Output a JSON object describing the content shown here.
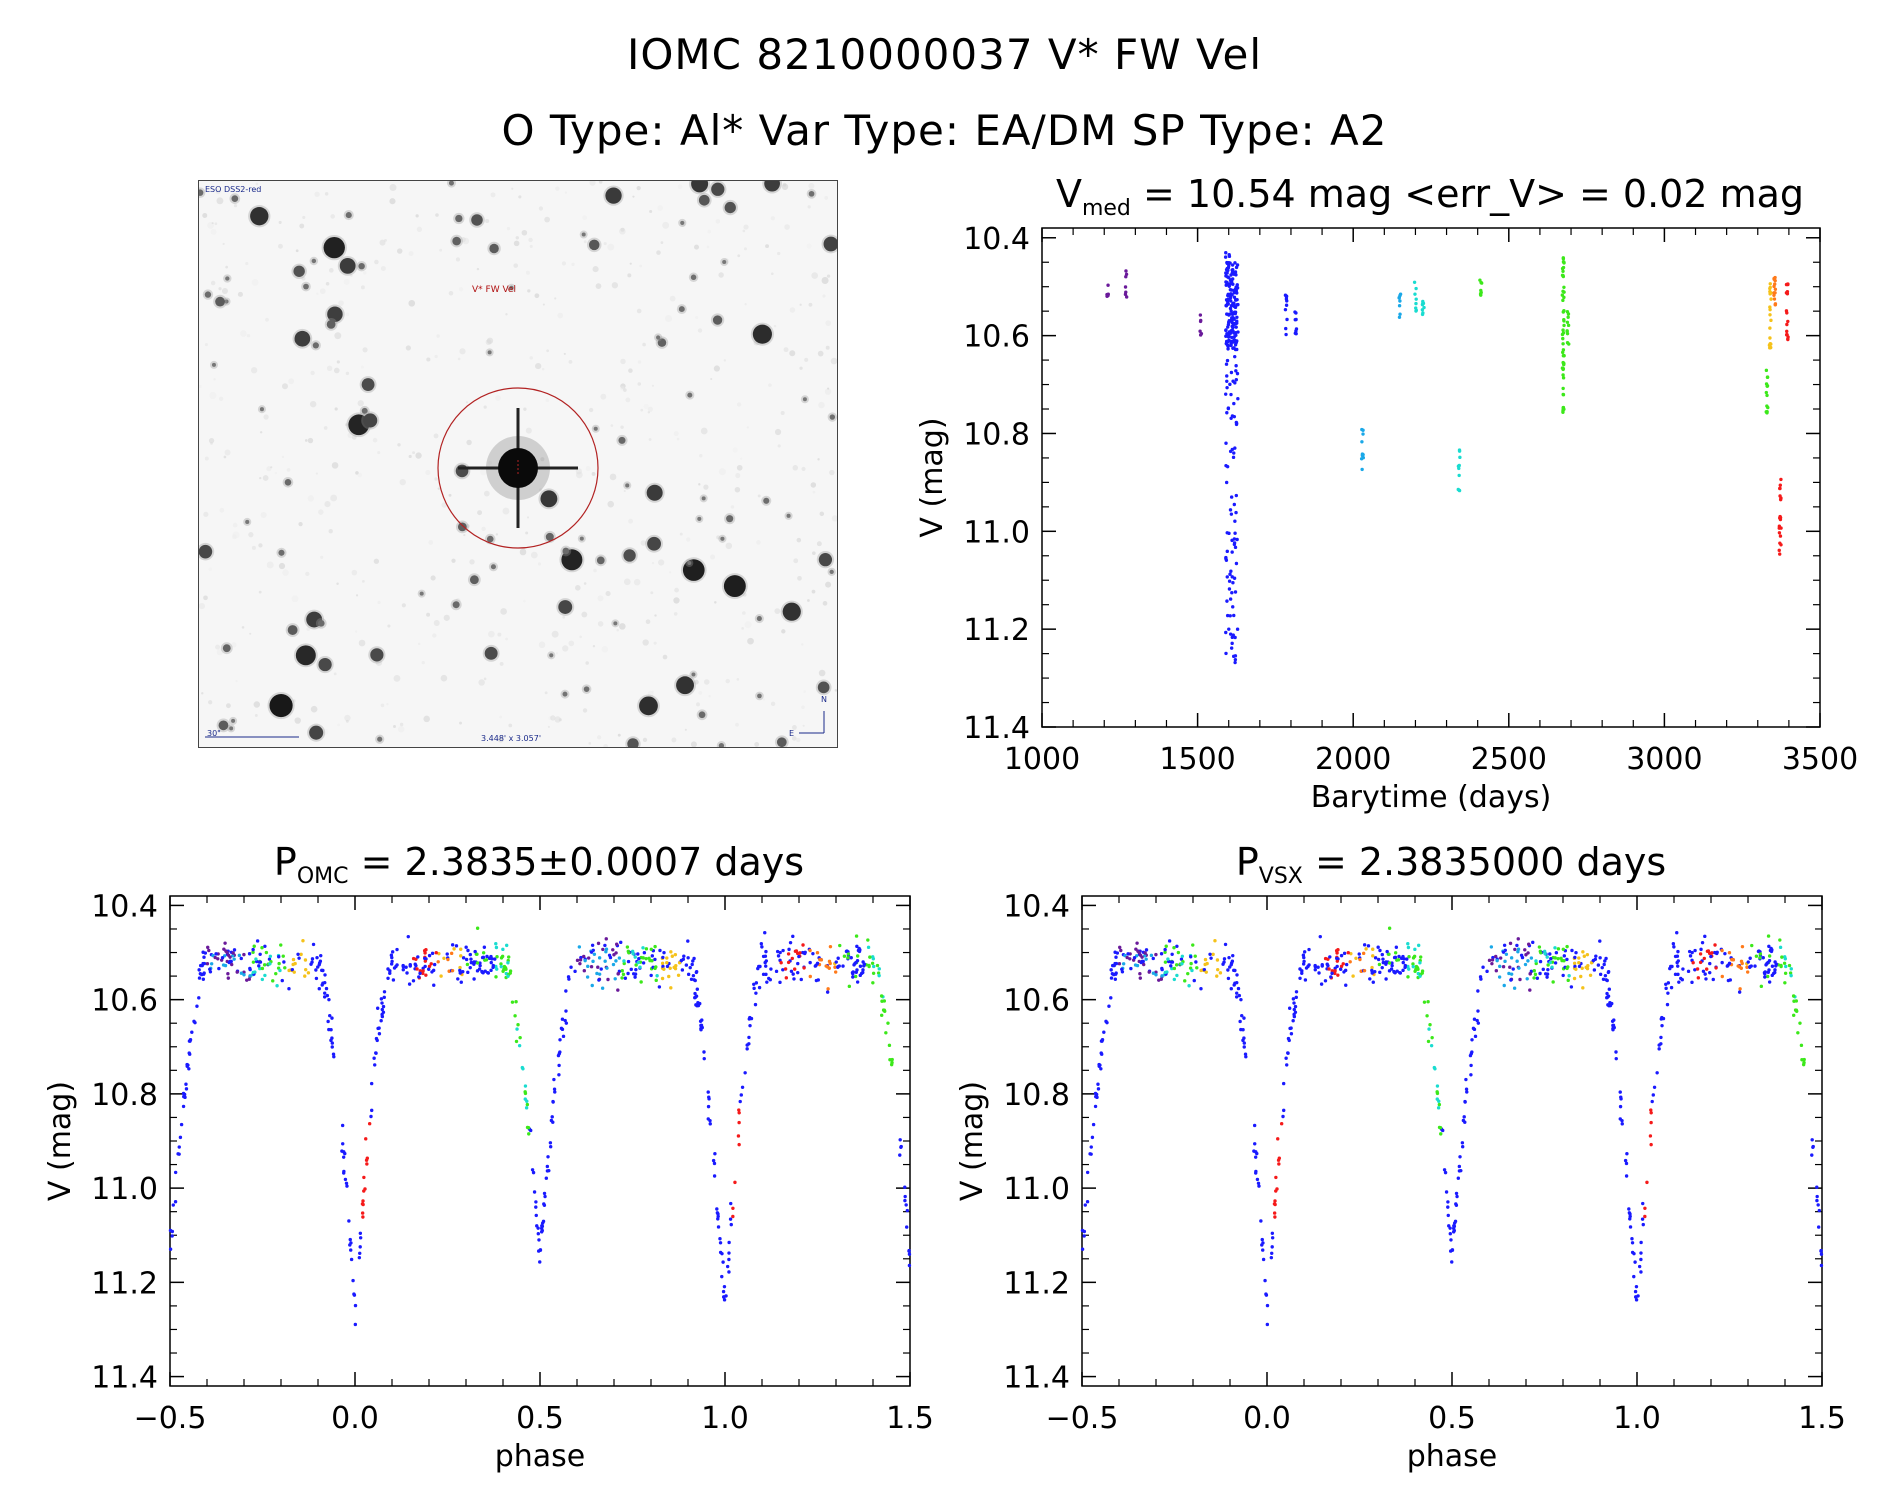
{
  "header": {
    "title_line1": "IOMC 8210000037    V* FW Vel",
    "title_line2": "O Type: Al*  Var Type: EA/DM  SP Type: A2"
  },
  "thumbnail": {
    "survey_label": "ESO DSS2-red",
    "target_label": "V* FW Vel",
    "scale_label": "30\"",
    "size_label": "3.448' x 3.057'",
    "compass_n": "N",
    "compass_e": "E",
    "circle_color": "#b22222"
  },
  "colors": {
    "blue": "#1a1aff",
    "purple": "#6a1a9a",
    "cyan": "#1aa8e8",
    "teal": "#1adcd0",
    "green": "#3ce81a",
    "yellow": "#f5c21a",
    "orange": "#ff7a1a",
    "red": "#f51a1a"
  },
  "lc_title": {
    "prefix": "V",
    "sub": "med",
    "suffix": " = 10.54 mag <err_V> = 0.02 mag"
  },
  "fold1_title": {
    "prefix": "P",
    "sub": "OMC",
    "suffix": " = 2.3835±0.0007 days"
  },
  "fold2_title": {
    "prefix": "P",
    "sub": "VSX",
    "suffix": " = 2.3835000 days"
  },
  "chart_data": [
    {
      "type": "scatter",
      "name": "light-curve",
      "title": "Vmed = 10.54 mag <err_V> = 0.02 mag",
      "xlabel": "Barytime (days)",
      "ylabel": "V (mag)",
      "xlim": [
        1000,
        3500
      ],
      "ylim": [
        11.4,
        10.38
      ],
      "xticks": [
        1000,
        1500,
        2000,
        2500,
        3000,
        3500
      ],
      "xtick_labels": [
        "1000",
        "1500",
        "2000",
        "2500",
        "3000",
        "3500"
      ],
      "yticks": [
        10.4,
        10.6,
        10.8,
        11.0,
        11.2,
        11.4
      ],
      "ytick_labels": [
        "10.4",
        "10.6",
        "10.8",
        "11.0",
        "11.2",
        "11.4"
      ],
      "groups": [
        {
          "t": 1210,
          "range": [
            10.49,
            10.53
          ],
          "n": 6,
          "color": "purple"
        },
        {
          "t": 1270,
          "range": [
            10.46,
            10.53
          ],
          "n": 7,
          "color": "purple"
        },
        {
          "t": 1510,
          "range": [
            10.55,
            10.6
          ],
          "n": 6,
          "color": "purple"
        },
        {
          "t": 1610,
          "range": [
            10.43,
            11.27
          ],
          "n": 260,
          "color": "blue"
        },
        {
          "t": 1785,
          "range": [
            10.5,
            10.6
          ],
          "n": 10,
          "color": "blue"
        },
        {
          "t": 1815,
          "range": [
            10.54,
            10.6
          ],
          "n": 8,
          "color": "blue"
        },
        {
          "t": 2030,
          "range": [
            10.79,
            10.88
          ],
          "n": 10,
          "color": "cyan"
        },
        {
          "t": 2150,
          "range": [
            10.51,
            10.58
          ],
          "n": 8,
          "color": "cyan"
        },
        {
          "t": 2200,
          "range": [
            10.49,
            10.55
          ],
          "n": 8,
          "color": "teal"
        },
        {
          "t": 2225,
          "range": [
            10.5,
            10.56
          ],
          "n": 8,
          "color": "teal"
        },
        {
          "t": 2340,
          "range": [
            10.83,
            10.92
          ],
          "n": 10,
          "color": "teal"
        },
        {
          "t": 2410,
          "range": [
            10.48,
            10.54
          ],
          "n": 8,
          "color": "green"
        },
        {
          "t": 2675,
          "range": [
            10.44,
            10.78
          ],
          "n": 50,
          "color": "green"
        },
        {
          "t": 2690,
          "range": [
            10.53,
            10.62
          ],
          "n": 10,
          "color": "green"
        },
        {
          "t": 3330,
          "range": [
            10.65,
            10.77
          ],
          "n": 14,
          "color": "green"
        },
        {
          "t": 3340,
          "range": [
            10.49,
            10.63
          ],
          "n": 20,
          "color": "yellow"
        },
        {
          "t": 3355,
          "range": [
            10.48,
            10.54
          ],
          "n": 14,
          "color": "orange"
        },
        {
          "t": 3372,
          "range": [
            10.88,
            11.06
          ],
          "n": 20,
          "color": "red"
        },
        {
          "t": 3395,
          "range": [
            10.49,
            10.62
          ],
          "n": 18,
          "color": "red"
        }
      ]
    },
    {
      "type": "scatter",
      "name": "phase-fold-omc",
      "title": "POMC = 2.3835±0.0007 days",
      "period_days": 2.3835,
      "xlabel": "phase",
      "ylabel": "V (mag)",
      "xlim": [
        -0.5,
        1.5
      ],
      "ylim": [
        11.42,
        10.38
      ],
      "xticks": [
        -0.5,
        0.0,
        0.5,
        1.0,
        1.5
      ],
      "xtick_labels": [
        "−0.5",
        "0.0",
        "0.5",
        "1.0",
        "1.5"
      ],
      "yticks": [
        10.4,
        10.6,
        10.8,
        11.0,
        11.2,
        11.4
      ],
      "ytick_labels": [
        "10.4",
        "10.6",
        "10.8",
        "11.0",
        "11.2",
        "11.4"
      ],
      "light_curve_model": {
        "max_mag": 10.52,
        "primary_min": {
          "phase": 0.0,
          "mag": 11.27,
          "half_width": 0.1
        },
        "secondary_min": {
          "phase": 0.5,
          "mag": 11.15,
          "half_width": 0.1
        }
      }
    },
    {
      "type": "scatter",
      "name": "phase-fold-vsx",
      "title": "PVSX = 2.3835000 days",
      "period_days": 2.3835,
      "xlabel": "phase",
      "ylabel": "V (mag)",
      "xlim": [
        -0.5,
        1.5
      ],
      "ylim": [
        11.42,
        10.38
      ],
      "xticks": [
        -0.5,
        0.0,
        0.5,
        1.0,
        1.5
      ],
      "xtick_labels": [
        "−0.5",
        "0.0",
        "0.5",
        "1.0",
        "1.5"
      ],
      "yticks": [
        10.4,
        10.6,
        10.8,
        11.0,
        11.2,
        11.4
      ],
      "ytick_labels": [
        "10.4",
        "10.6",
        "10.8",
        "11.0",
        "11.2",
        "11.4"
      ],
      "light_curve_model": {
        "max_mag": 10.52,
        "primary_min": {
          "phase": 0.0,
          "mag": 11.27,
          "half_width": 0.1
        },
        "secondary_min": {
          "phase": 0.5,
          "mag": 11.15,
          "half_width": 0.1
        }
      }
    }
  ]
}
